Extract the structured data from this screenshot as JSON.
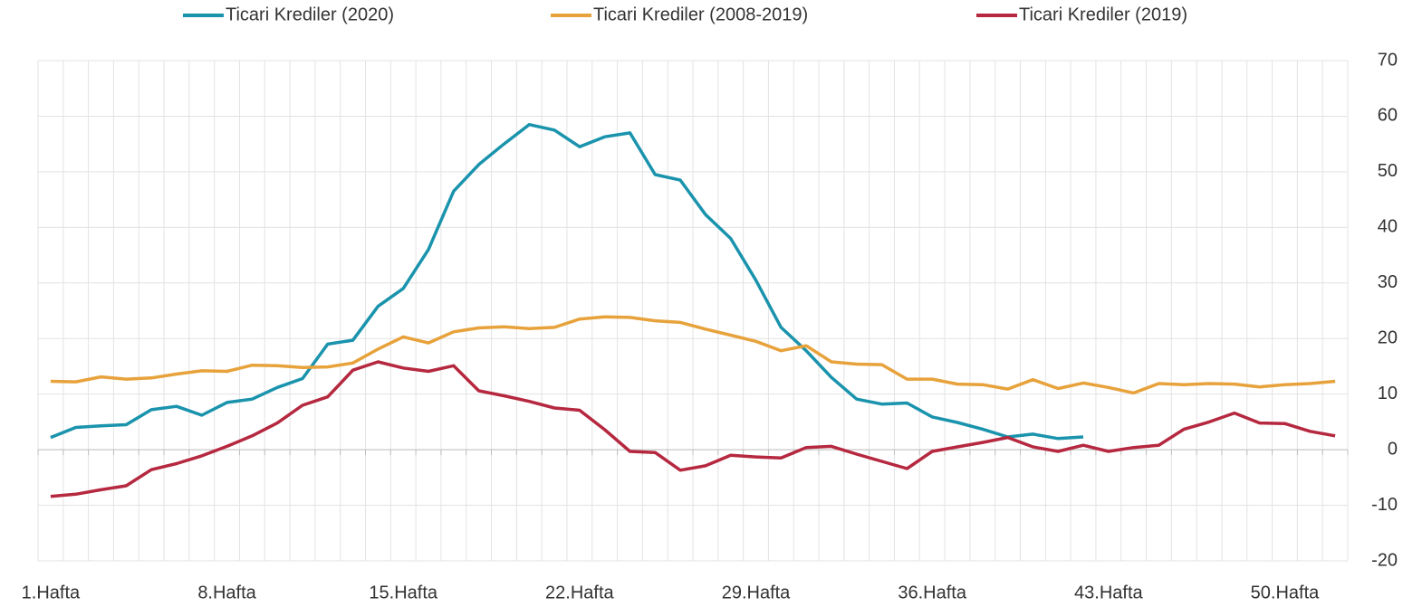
{
  "chart_data": {
    "type": "line",
    "categories": [
      "1.Hafta",
      null,
      null,
      null,
      null,
      null,
      null,
      "8.Hafta",
      null,
      null,
      null,
      null,
      null,
      null,
      "15.Hafta",
      null,
      null,
      null,
      null,
      null,
      null,
      "22.Hafta",
      null,
      null,
      null,
      null,
      null,
      null,
      "29.Hafta",
      null,
      null,
      null,
      null,
      null,
      null,
      "36.Hafta",
      null,
      null,
      null,
      null,
      null,
      null,
      "43.Hafta",
      null,
      null,
      null,
      null,
      null,
      null,
      "50.Hafta",
      null,
      null
    ],
    "series": [
      {
        "name": "Ticari Krediler (2020)",
        "color": "#1a93ad",
        "values": [
          2.2,
          4.0,
          4.3,
          4.5,
          7.2,
          7.8,
          6.2,
          8.5,
          9.1,
          11.2,
          12.8,
          19.0,
          19.7,
          25.8,
          29.0,
          36.0,
          46.5,
          51.3,
          55.0,
          58.5,
          57.5,
          54.5,
          56.3,
          57.0,
          49.5,
          48.5,
          42.3,
          38.0,
          30.5,
          22.0,
          17.8,
          13.0,
          9.1,
          8.2,
          8.4,
          5.9,
          4.9,
          3.7,
          2.3,
          2.8,
          2.0,
          2.3,
          null,
          null,
          null,
          null,
          null,
          null,
          null,
          null,
          null,
          null
        ]
      },
      {
        "name": "Ticari Krediler (2008-2019)",
        "color": "#e7a23b",
        "values": [
          12.3,
          12.2,
          13.1,
          12.7,
          12.9,
          13.6,
          14.2,
          14.1,
          15.2,
          15.1,
          14.8,
          14.9,
          15.6,
          18.1,
          20.3,
          19.2,
          21.2,
          21.9,
          22.1,
          21.8,
          22.0,
          23.5,
          23.9,
          23.8,
          23.2,
          22.9,
          21.7,
          20.6,
          19.5,
          17.8,
          18.7,
          15.8,
          15.4,
          15.3,
          12.7,
          12.7,
          11.8,
          11.7,
          10.9,
          12.6,
          11.0,
          12.0,
          11.2,
          10.2,
          11.9,
          11.7,
          11.9,
          11.8,
          11.3,
          11.7,
          11.9,
          12.3
        ]
      },
      {
        "name": "Ticari Krediler (2019)",
        "color": "#b5283f",
        "values": [
          -8.4,
          -8.0,
          -7.2,
          -6.5,
          -3.6,
          -2.5,
          -1.1,
          0.6,
          2.5,
          4.8,
          8.0,
          9.5,
          14.3,
          15.8,
          14.7,
          14.1,
          15.1,
          10.6,
          9.7,
          8.7,
          7.5,
          7.1,
          3.6,
          -0.3,
          -0.5,
          -3.7,
          -2.9,
          -1.0,
          -1.3,
          -1.5,
          0.4,
          0.6,
          -0.8,
          -2.1,
          -3.4,
          -0.3,
          0.5,
          1.3,
          2.2,
          0.5,
          -0.3,
          0.8,
          -0.3,
          0.4,
          0.8,
          3.7,
          5.0,
          6.6,
          4.8,
          4.7,
          3.3,
          2.5
        ]
      }
    ],
    "ylim": [
      -20,
      70
    ],
    "yticks": [
      -20,
      -10,
      0,
      10,
      20,
      30,
      40,
      50,
      60,
      70
    ],
    "grid": true,
    "legend": "top"
  }
}
